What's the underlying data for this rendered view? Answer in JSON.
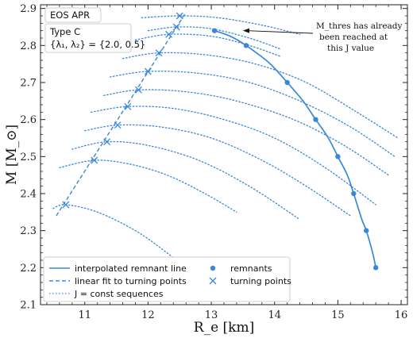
{
  "chart_data": {
    "type": "line",
    "xlabel": "R_e [km]",
    "ylabel": "M [M_⊙]",
    "xlim": [
      10.3,
      16.1
    ],
    "ylim": [
      2.1,
      2.91
    ],
    "xticks": [
      11,
      12,
      13,
      14,
      15,
      16
    ],
    "yticks": [
      2.1,
      2.2,
      2.3,
      2.4,
      2.5,
      2.6,
      2.7,
      2.8,
      2.9
    ],
    "ytick_labels": [
      "2.1",
      "2.2",
      "2.3",
      "2.4",
      "2.5",
      "2.6",
      "2.7",
      "2.8",
      "2.9"
    ],
    "ticks_inward_all_sides": true,
    "color": "#3a87d9",
    "info_box": {
      "line1": "EOS APR",
      "line2": "Type C",
      "line3": "{λ₁, λ₂} = {2.0, 0.5}"
    },
    "annotation": {
      "lines": [
        "M_thres has already",
        "been reached at",
        "this J value"
      ],
      "arrow_target": [
        13.5,
        2.84
      ]
    },
    "remnant_line": {
      "name": "interpolated remnant line",
      "style": "solid",
      "x": [
        13.05,
        13.3,
        13.55,
        13.9,
        14.2,
        14.45,
        14.65,
        14.85,
        15.0,
        15.15,
        15.25,
        15.38,
        15.45,
        15.55,
        15.6
      ],
      "y": [
        2.84,
        2.825,
        2.8,
        2.755,
        2.7,
        2.65,
        2.6,
        2.55,
        2.5,
        2.45,
        2.4,
        2.33,
        2.3,
        2.24,
        2.2
      ]
    },
    "remnants": {
      "name": "remnants",
      "marker": "dot",
      "x": [
        13.05,
        13.55,
        14.2,
        14.65,
        15.0,
        15.25,
        15.45,
        15.6
      ],
      "y": [
        2.84,
        2.8,
        2.7,
        2.6,
        2.5,
        2.4,
        2.3,
        2.2
      ]
    },
    "linear_fit": {
      "name": "linear fit to turning points",
      "style": "dashed",
      "x": [
        10.55,
        12.6
      ],
      "y": [
        2.34,
        2.89
      ]
    },
    "turning_points": {
      "name": "turning points",
      "marker": "x",
      "x": [
        10.7,
        11.15,
        11.35,
        11.52,
        11.68,
        11.85,
        12.0,
        12.17,
        12.33,
        12.45,
        12.5
      ],
      "y": [
        2.37,
        2.49,
        2.54,
        2.585,
        2.635,
        2.68,
        2.73,
        2.78,
        2.83,
        2.85,
        2.88
      ]
    },
    "j_sequences": {
      "name": "J = const sequences",
      "style": "dotted",
      "lines": [
        {
          "x": [
            10.5,
            10.7,
            11.2,
            11.8,
            12.3,
            12.8
          ],
          "y": [
            2.36,
            2.37,
            2.35,
            2.3,
            2.24,
            2.17
          ]
        },
        {
          "x": [
            10.6,
            11.15,
            11.7,
            12.3,
            12.9,
            13.4
          ],
          "y": [
            2.47,
            2.49,
            2.48,
            2.45,
            2.4,
            2.35
          ]
        },
        {
          "x": [
            10.8,
            11.35,
            12.0,
            12.8,
            13.6,
            14.4
          ],
          "y": [
            2.52,
            2.54,
            2.53,
            2.49,
            2.42,
            2.33
          ]
        },
        {
          "x": [
            11.0,
            11.52,
            12.2,
            13.0,
            13.8,
            14.5,
            15.2
          ],
          "y": [
            2.57,
            2.585,
            2.58,
            2.55,
            2.49,
            2.42,
            2.34
          ]
        },
        {
          "x": [
            11.1,
            11.68,
            12.4,
            13.2,
            14.0,
            14.8,
            15.6
          ],
          "y": [
            2.62,
            2.635,
            2.63,
            2.6,
            2.55,
            2.47,
            2.37
          ]
        },
        {
          "x": [
            11.3,
            11.85,
            12.6,
            13.4,
            14.3,
            15.1,
            15.8
          ],
          "y": [
            2.665,
            2.68,
            2.675,
            2.65,
            2.6,
            2.53,
            2.45
          ]
        },
        {
          "x": [
            11.4,
            12.0,
            12.8,
            13.6,
            14.4,
            15.2,
            15.9
          ],
          "y": [
            2.715,
            2.73,
            2.725,
            2.7,
            2.65,
            2.58,
            2.5
          ]
        },
        {
          "x": [
            11.6,
            12.17,
            12.9,
            13.7,
            14.5,
            15.3,
            15.95
          ],
          "y": [
            2.765,
            2.78,
            2.775,
            2.75,
            2.7,
            2.62,
            2.55
          ]
        },
        {
          "x": [
            11.8,
            12.33,
            13.0,
            13.6,
            14.1
          ],
          "y": [
            2.815,
            2.83,
            2.825,
            2.8,
            2.77
          ]
        },
        {
          "x": [
            12.0,
            12.45,
            13.0,
            13.6,
            14.1
          ],
          "y": [
            2.84,
            2.85,
            2.845,
            2.82,
            2.79
          ]
        },
        {
          "x": [
            11.9,
            12.5,
            13.1,
            13.8,
            14.4
          ],
          "y": [
            2.875,
            2.88,
            2.875,
            2.855,
            2.83
          ]
        }
      ]
    },
    "legend": {
      "position": "lower-left",
      "entries": [
        {
          "label": "interpolated remnant line",
          "kind": "solid"
        },
        {
          "label": "remnants",
          "kind": "dot"
        },
        {
          "label": "linear fit to turning points",
          "kind": "dashed"
        },
        {
          "label": "turning points",
          "kind": "x"
        },
        {
          "label": "J = const sequences",
          "kind": "dotted"
        }
      ]
    }
  }
}
